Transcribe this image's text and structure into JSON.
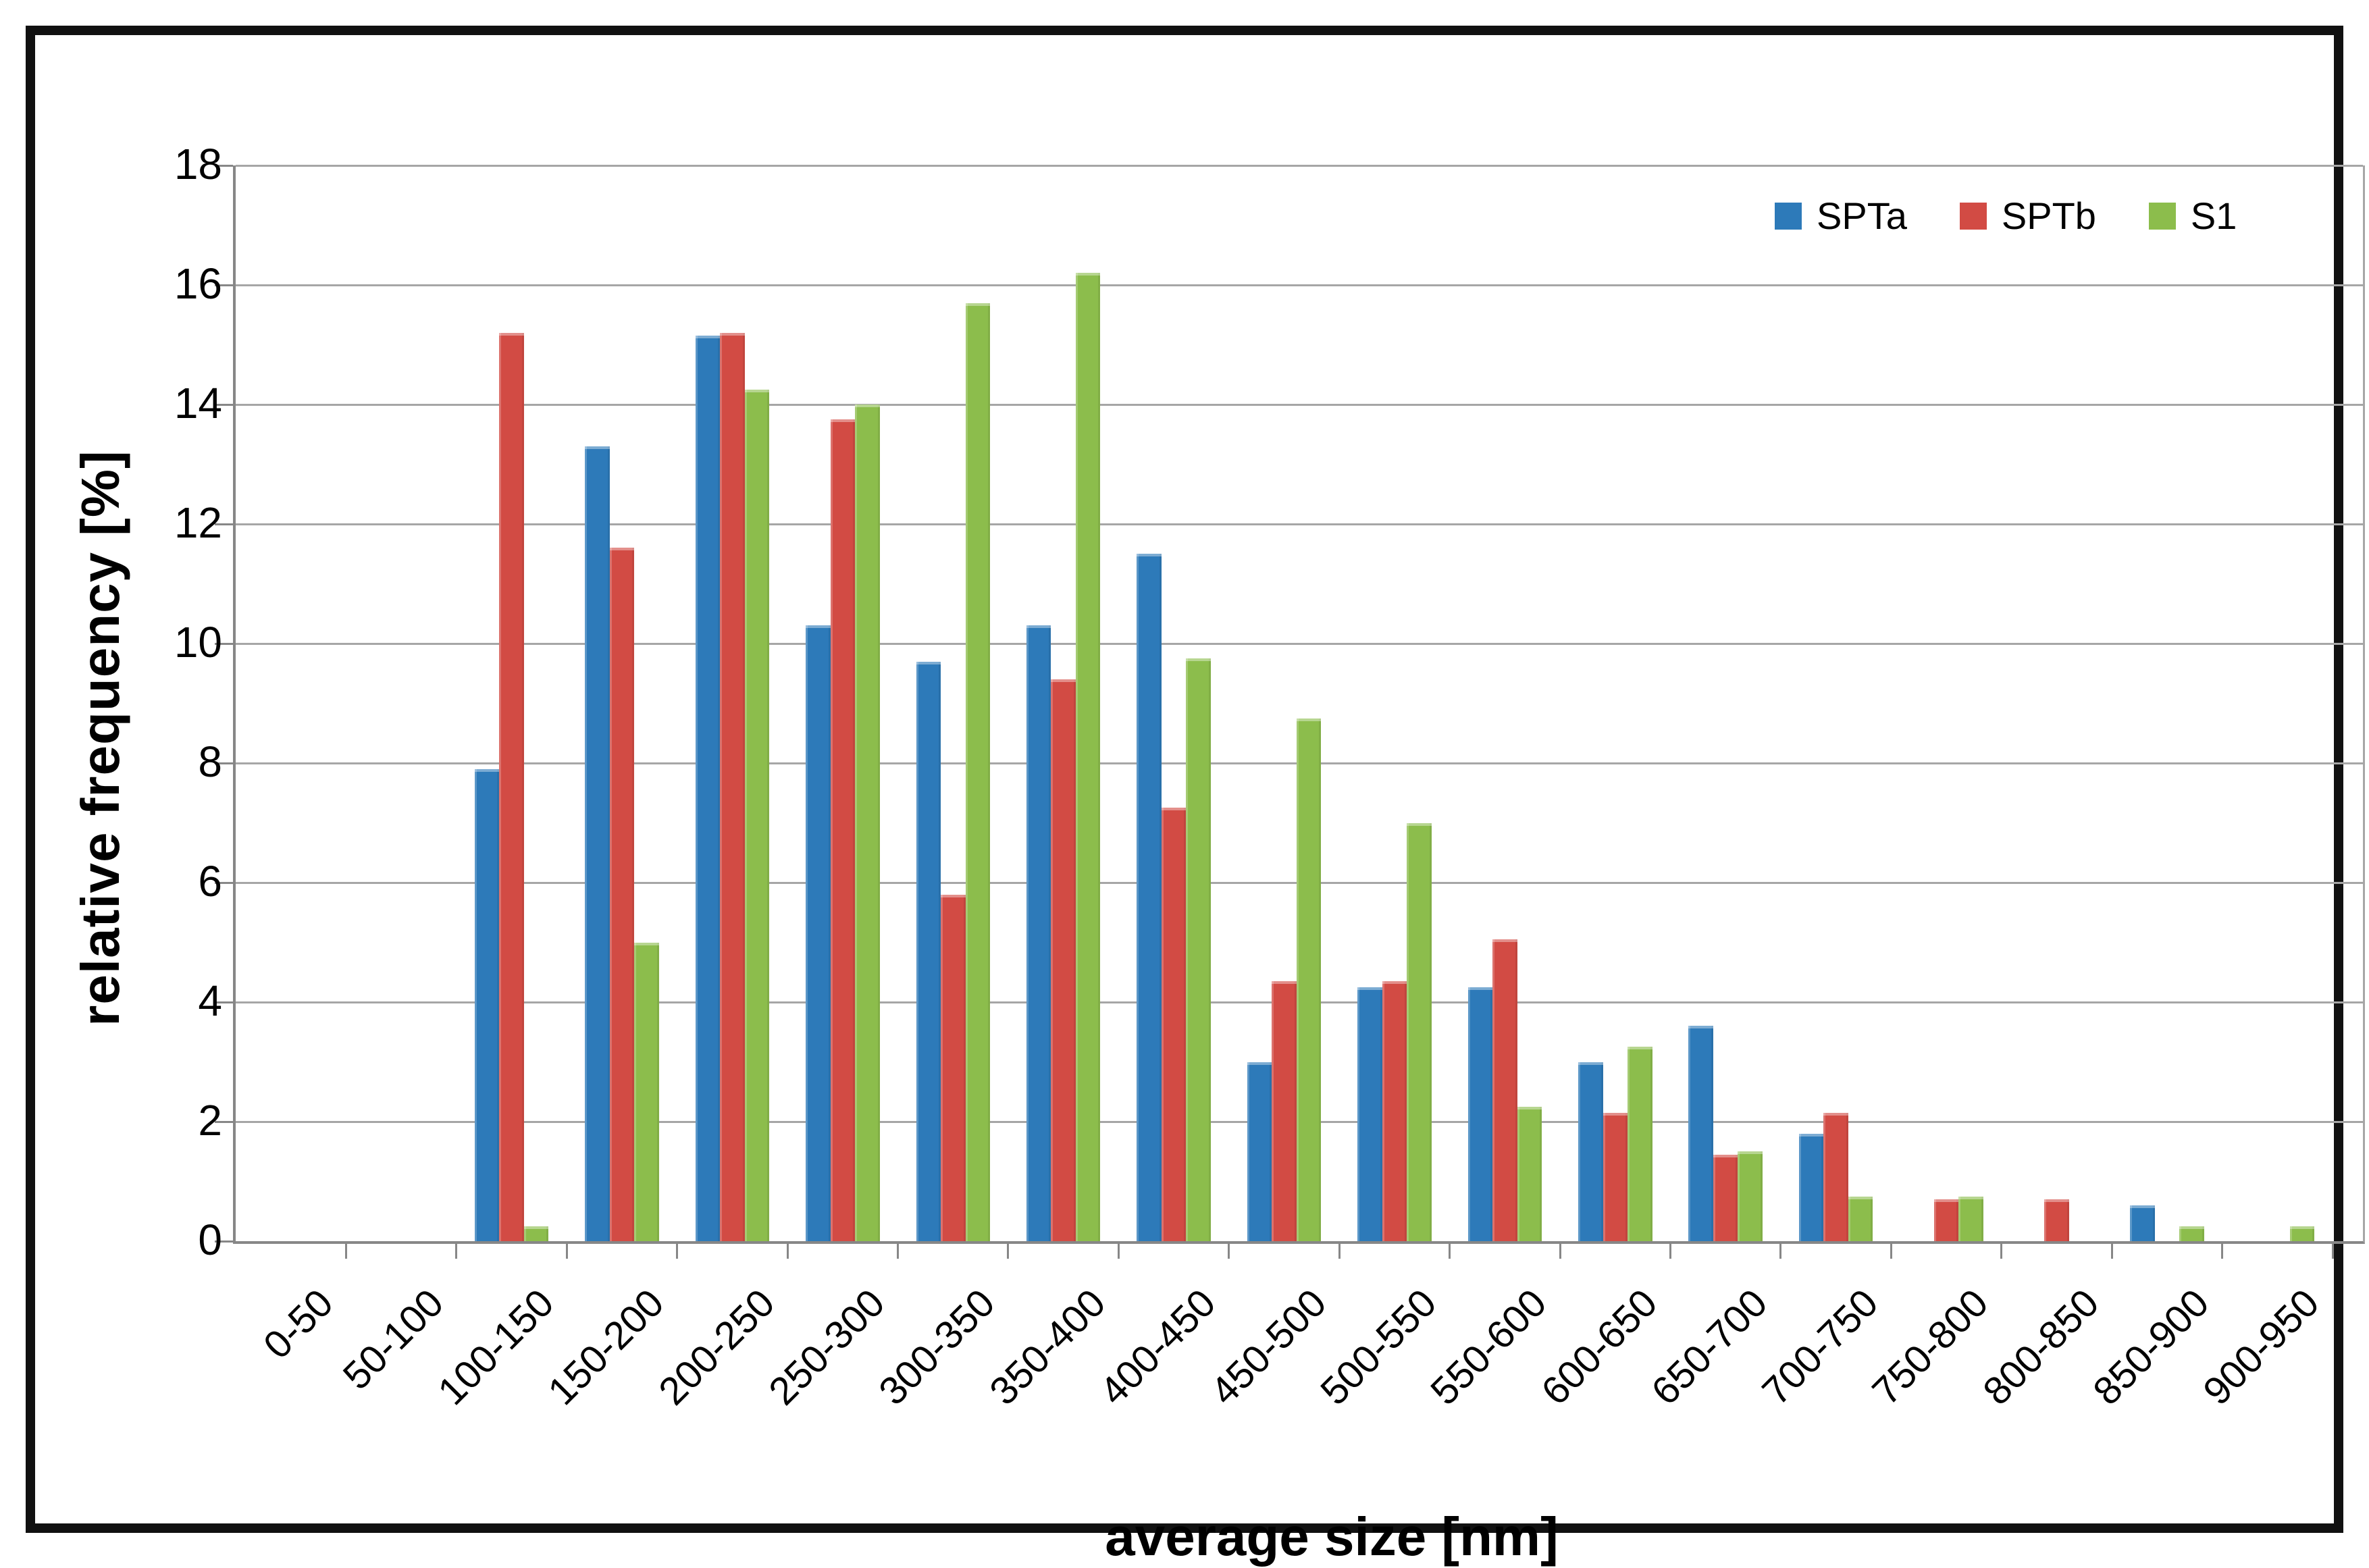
{
  "chart_data": {
    "type": "bar",
    "title": "",
    "xlabel": "average size [nm]",
    "ylabel": "relative frequency [%]",
    "categories": [
      "0-50",
      "50-100",
      "100-150",
      "150-200",
      "200-250",
      "250-300",
      "300-350",
      "350-400",
      "400-450",
      "450-500",
      "500-550",
      "550-600",
      "600-650",
      "650-700",
      "700-750",
      "750-800",
      "800-850",
      "850-900",
      "900-950"
    ],
    "series": [
      {
        "name": "SPTa",
        "color": "#2d7ab9",
        "values": [
          0,
          0,
          7.9,
          13.3,
          15.15,
          10.3,
          9.7,
          10.3,
          11.5,
          3.0,
          4.25,
          4.25,
          3.0,
          3.6,
          1.8,
          0,
          0,
          0.6,
          0
        ]
      },
      {
        "name": "SPTb",
        "color": "#d24b44",
        "values": [
          0,
          0,
          15.2,
          11.6,
          15.2,
          13.75,
          5.8,
          9.4,
          7.25,
          4.35,
          4.35,
          5.05,
          2.15,
          1.45,
          2.15,
          0.7,
          0.7,
          0,
          0
        ]
      },
      {
        "name": "S1",
        "color": "#8cbd4c",
        "values": [
          0,
          0,
          0.25,
          5.0,
          14.25,
          14.0,
          15.7,
          16.2,
          9.75,
          8.75,
          7.0,
          2.25,
          3.25,
          1.5,
          0.75,
          0.75,
          0,
          0.25,
          0.25
        ]
      }
    ],
    "ylim": [
      0,
      18
    ],
    "ytick_step": 2,
    "ytick_labels": [
      "0",
      "2",
      "4",
      "6",
      "8",
      "10",
      "12",
      "14",
      "16",
      "18"
    ],
    "grid": true,
    "legend_position": "top-right",
    "colors": {
      "gridline": "#a6a6a6",
      "axis_line": "#878787",
      "frame": "#111111",
      "text": "#000000"
    }
  }
}
